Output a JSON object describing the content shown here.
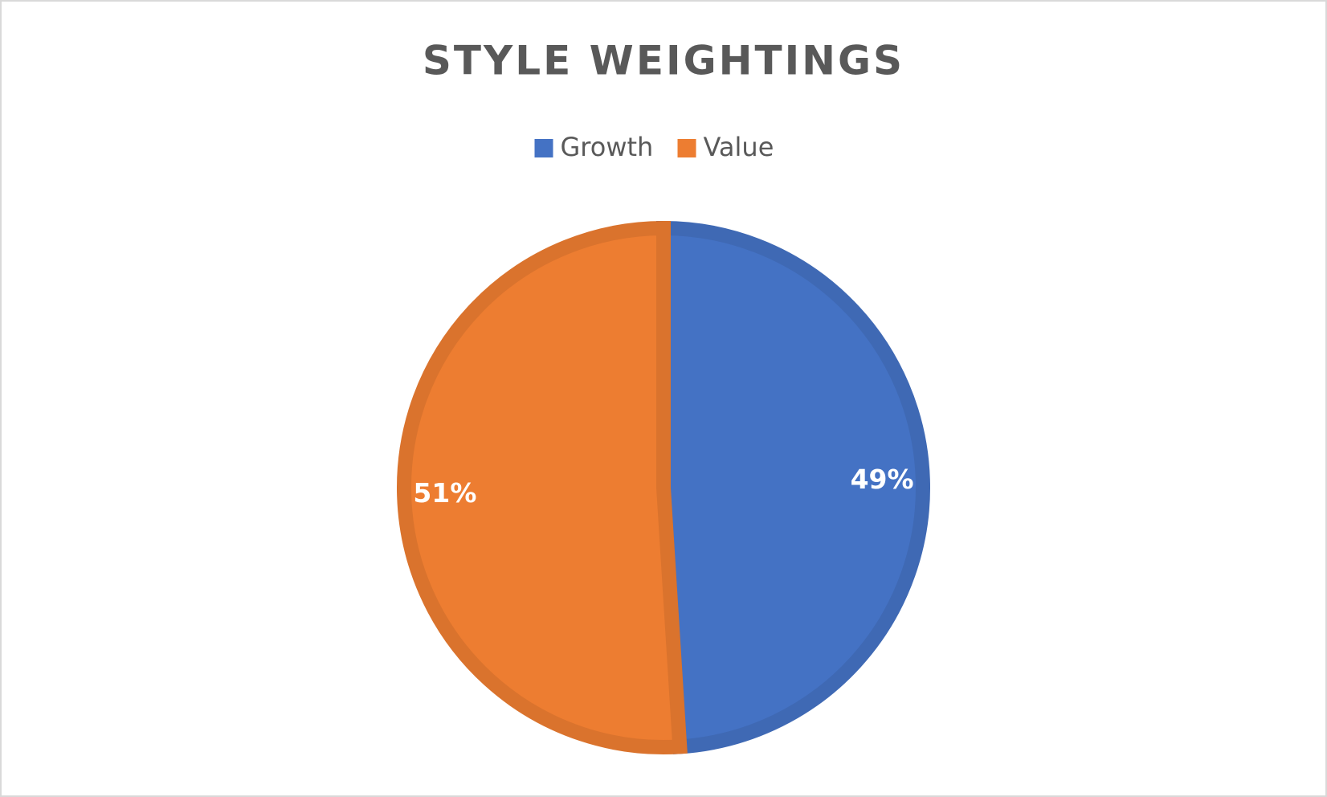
{
  "chart_data": {
    "type": "pie",
    "title": "STYLE WEIGHTINGS",
    "categories": [
      "Growth",
      "Value"
    ],
    "values": [
      49,
      51
    ],
    "value_labels": [
      "49%",
      "51%"
    ],
    "colors": [
      "#4472c4",
      "#ed7d31"
    ],
    "legend": "top"
  }
}
